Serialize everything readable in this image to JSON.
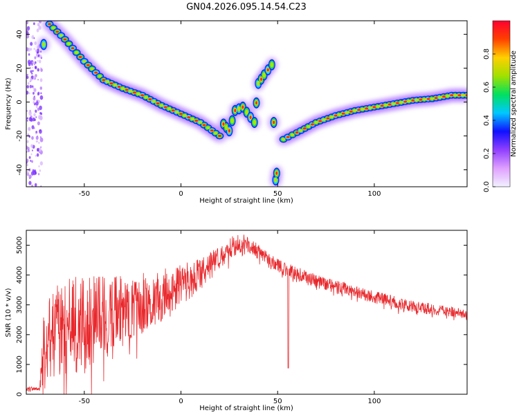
{
  "figure_title": "GN04.2026.095.14.54.C23",
  "chart_data": [
    {
      "type": "heatmap",
      "xlabel": "Height of straight line (km)",
      "ylabel": "Frequency (Hz)",
      "xlim": [
        -80,
        148
      ],
      "ylim": [
        -50,
        48
      ],
      "xticks": [
        -50,
        0,
        50,
        100
      ],
      "yticks": [
        -40,
        -20,
        0,
        20,
        40
      ],
      "colorbar": {
        "label": "Normalized spectral amplitude",
        "range": [
          0,
          1
        ],
        "ticks": [
          0.0,
          0.2,
          0.4,
          0.6,
          0.8
        ],
        "colors": [
          "#f2f2ff",
          "#e0a0ff",
          "#9040ff",
          "#1010ff",
          "#00c8ff",
          "#00e060",
          "#a0e000",
          "#ffd000",
          "#ff4000",
          "#ff0030"
        ]
      },
      "traces": [
        {
          "segment": "main-descending",
          "points": [
            [
              -68,
              46
            ],
            [
              -60,
              37
            ],
            [
              -50,
              24
            ],
            [
              -40,
              13
            ],
            [
              -30,
              8
            ],
            [
              -20,
              4
            ],
            [
              -10,
              -2
            ],
            [
              0,
              -7
            ],
            [
              10,
              -12
            ],
            [
              20,
              -20
            ]
          ]
        },
        {
          "segment": "left-blob",
          "points": [
            [
              -71,
              34
            ]
          ]
        },
        {
          "segment": "middle-cluster",
          "points": [
            [
              22,
              -13
            ],
            [
              25,
              -17
            ],
            [
              28,
              -5
            ],
            [
              32,
              -3
            ],
            [
              38,
              -12
            ],
            [
              40,
              11
            ],
            [
              43,
              16
            ],
            [
              47,
              22
            ],
            [
              49,
              -46
            ],
            [
              50,
              -38
            ]
          ]
        },
        {
          "segment": "main-ascending",
          "points": [
            [
              53,
              -22
            ],
            [
              60,
              -18
            ],
            [
              70,
              -12
            ],
            [
              80,
              -8
            ],
            [
              90,
              -5
            ],
            [
              100,
              -3
            ],
            [
              110,
              -1
            ],
            [
              120,
              1
            ],
            [
              130,
              2
            ],
            [
              140,
              4
            ],
            [
              148,
              4
            ]
          ]
        }
      ],
      "noise_band_x": [
        -80,
        -72
      ]
    },
    {
      "type": "line",
      "xlabel": "Height of straight line (km)",
      "ylabel": "SNR (10 * v/v)",
      "xlim": [
        -80,
        148
      ],
      "ylim": [
        0,
        5500
      ],
      "xticks": [
        -50,
        0,
        50,
        100
      ],
      "yticks": [
        0,
        1000,
        2000,
        3000,
        4000,
        5000
      ],
      "color": "#e8282c",
      "envelope_x": [
        -80,
        -73,
        -71,
        -68,
        -65,
        -60,
        -55,
        -50,
        -45,
        -40,
        -35,
        -30,
        -25,
        -20,
        -15,
        -10,
        -5,
        0,
        5,
        10,
        15,
        20,
        25,
        30,
        35,
        40,
        45,
        50,
        55,
        60,
        65,
        70,
        75,
        80,
        85,
        90,
        95,
        100,
        105,
        110,
        115,
        120,
        125,
        130,
        135,
        140,
        148
      ],
      "envelope_y": [
        150,
        200,
        1400,
        1900,
        2100,
        2200,
        2300,
        2400,
        2500,
        2550,
        2650,
        2800,
        2950,
        3050,
        3200,
        3350,
        3500,
        3700,
        3850,
        4050,
        4300,
        4600,
        4900,
        5050,
        5050,
        4800,
        4500,
        4300,
        4150,
        4050,
        3900,
        3800,
        3700,
        3600,
        3550,
        3450,
        3350,
        3250,
        3200,
        3100,
        3000,
        2950,
        2900,
        2850,
        2800,
        2750,
        2650
      ],
      "noise_amplitude_x": [
        -80,
        -73,
        -71,
        -60,
        -45,
        -25,
        0,
        20,
        40,
        80,
        148
      ],
      "noise_amplitude_y": [
        80,
        80,
        1400,
        1700,
        1500,
        1100,
        700,
        400,
        250,
        220,
        180
      ],
      "dropout": {
        "x": 55.5,
        "y": 880
      }
    }
  ]
}
